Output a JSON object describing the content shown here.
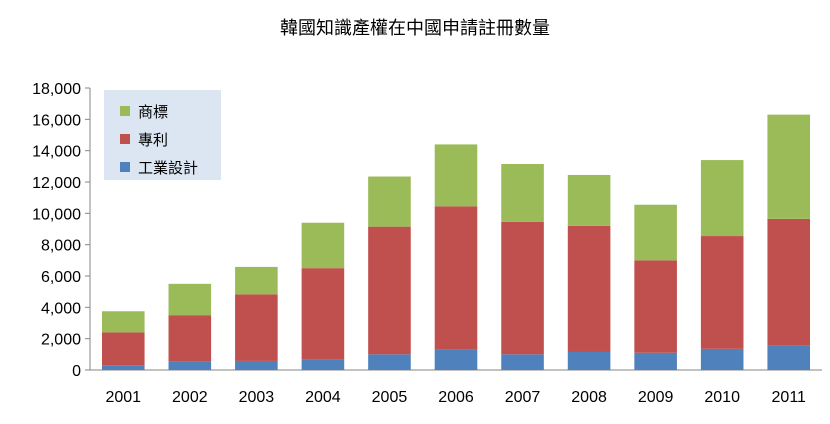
{
  "chart_data": {
    "type": "bar",
    "stacked": true,
    "title": "韓國知識產權在中國申請註冊數量",
    "categories": [
      "2001",
      "2002",
      "2003",
      "2004",
      "2005",
      "2006",
      "2007",
      "2008",
      "2009",
      "2010",
      "2011"
    ],
    "series": [
      {
        "name": "工業設計",
        "color": "#4f81bd",
        "values": [
          300,
          550,
          580,
          650,
          1000,
          1300,
          1000,
          1150,
          1100,
          1350,
          1550
        ]
      },
      {
        "name": "專利",
        "color": "#c0504d",
        "values": [
          2100,
          2950,
          4250,
          5850,
          8150,
          9150,
          8450,
          8050,
          5900,
          7200,
          8100
        ]
      },
      {
        "name": "商標",
        "color": "#9bbb59",
        "values": [
          1350,
          2000,
          1750,
          2900,
          3200,
          3950,
          3700,
          3250,
          3550,
          4850,
          6650
        ]
      }
    ],
    "ylim": [
      0,
      18000
    ],
    "yticks": [
      "0",
      "2,000",
      "4,000",
      "6,000",
      "8,000",
      "10,000",
      "12,000",
      "14,000",
      "16,000",
      "18,000"
    ],
    "grid": false,
    "legend": {
      "position": "top-left",
      "order": [
        "商標",
        "專利",
        "工業設計"
      ],
      "background": "#dce6f2"
    }
  }
}
